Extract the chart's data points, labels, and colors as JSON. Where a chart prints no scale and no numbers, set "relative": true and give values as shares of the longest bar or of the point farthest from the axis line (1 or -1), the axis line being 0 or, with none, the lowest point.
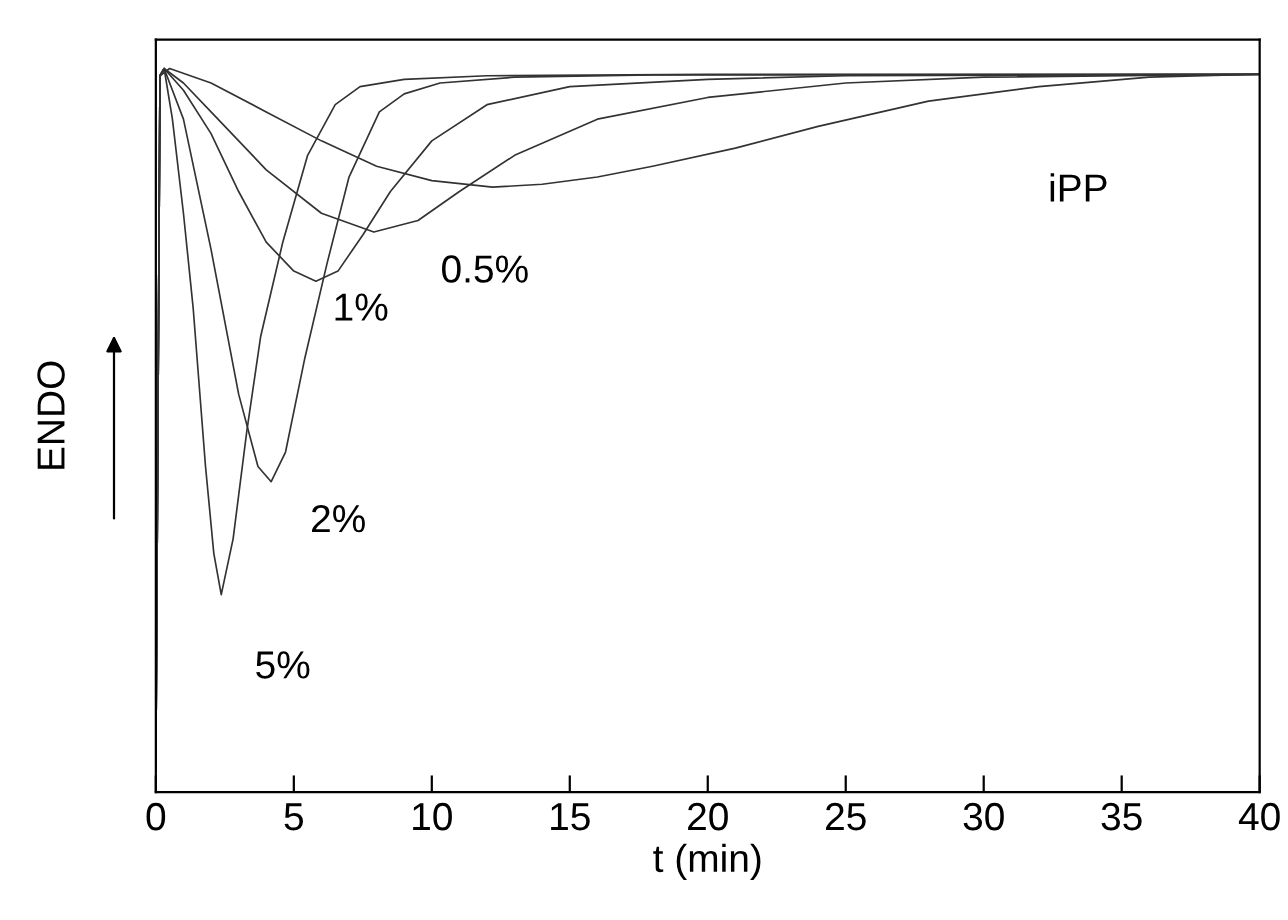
{
  "chart_data": {
    "type": "line",
    "relative": true,
    "xlabel": "t (min)",
    "ylabel": "ENDO",
    "xlim": [
      0,
      40
    ],
    "xticks": [
      0,
      5,
      10,
      15,
      20,
      25,
      30,
      35,
      40
    ],
    "tick_labels": "x",
    "grid": false,
    "legend": false,
    "marker": "none",
    "line_style": "solid",
    "series": [
      {
        "name": "5%",
        "color": "#333333",
        "x": [
          0,
          0.15,
          0.3,
          0.6,
          1.0,
          1.35,
          1.8,
          2.1,
          2.37,
          2.8,
          3.3,
          3.8,
          4.6,
          5.5,
          6.5,
          7.4,
          9,
          12,
          20,
          40
        ],
        "values": [
          0.03,
          0.99,
          1.0,
          0.93,
          0.8,
          0.67,
          0.45,
          0.33,
          0.273,
          0.35,
          0.5,
          0.63,
          0.76,
          0.88,
          0.95,
          0.975,
          0.985,
          0.99,
          0.992,
          0.992
        ]
      },
      {
        "name": "2%",
        "color": "#333333",
        "x": [
          0,
          0.15,
          0.3,
          1,
          2,
          3,
          3.7,
          4.18,
          4.7,
          5.4,
          6.2,
          7,
          8.1,
          9,
          10.3,
          13,
          18,
          40
        ],
        "values": [
          0.03,
          0.99,
          1.0,
          0.93,
          0.75,
          0.55,
          0.45,
          0.429,
          0.47,
          0.6,
          0.73,
          0.85,
          0.94,
          0.965,
          0.98,
          0.988,
          0.991,
          0.992
        ]
      },
      {
        "name": "1%",
        "color": "#333333",
        "x": [
          0,
          0.15,
          0.3,
          1,
          2,
          3,
          4,
          5,
          5.8,
          6.6,
          7.5,
          8.5,
          10,
          12,
          15,
          20,
          25,
          40
        ],
        "values": [
          0.03,
          0.99,
          1.0,
          0.97,
          0.91,
          0.83,
          0.76,
          0.72,
          0.706,
          0.72,
          0.77,
          0.83,
          0.9,
          0.95,
          0.975,
          0.985,
          0.99,
          0.992
        ]
      },
      {
        "name": "0.5%",
        "color": "#333333",
        "x": [
          0,
          0.15,
          0.3,
          1,
          2,
          4,
          6,
          7.9,
          9.5,
          11,
          13,
          16,
          20,
          25,
          30,
          40
        ],
        "values": [
          0.03,
          0.99,
          1.0,
          0.98,
          0.94,
          0.86,
          0.8,
          0.774,
          0.79,
          0.83,
          0.88,
          0.93,
          0.96,
          0.98,
          0.988,
          0.992
        ]
      },
      {
        "name": "iPP",
        "color": "#333333",
        "x": [
          0,
          0.15,
          0.5,
          2,
          4,
          6,
          8,
          10,
          12.2,
          14,
          16,
          18,
          21,
          24,
          28,
          32,
          36,
          40
        ],
        "values": [
          0.03,
          0.99,
          1.0,
          0.98,
          0.94,
          0.9,
          0.865,
          0.845,
          0.836,
          0.84,
          0.85,
          0.865,
          0.89,
          0.92,
          0.955,
          0.975,
          0.988,
          0.992
        ]
      }
    ]
  }
}
